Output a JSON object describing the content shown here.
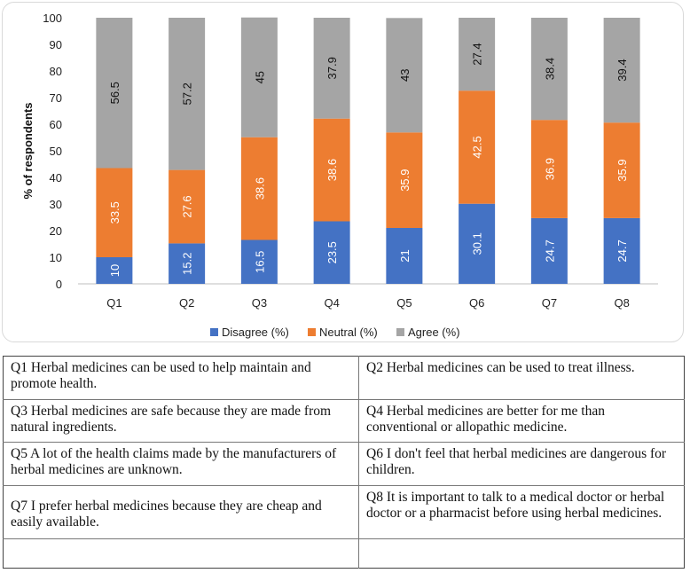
{
  "chart_data": {
    "type": "bar",
    "stacked": true,
    "categories": [
      "Q1",
      "Q2",
      "Q3",
      "Q4",
      "Q5",
      "Q6",
      "Q7",
      "Q8"
    ],
    "series": [
      {
        "name": "Disagree (%)",
        "color": "#4472c4",
        "values": [
          10,
          15.2,
          16.5,
          23.5,
          21,
          30.1,
          24.7,
          24.7
        ]
      },
      {
        "name": "Neutral (%)",
        "color": "#ed7d31",
        "values": [
          33.5,
          27.6,
          38.6,
          38.6,
          35.9,
          42.5,
          36.9,
          35.9
        ]
      },
      {
        "name": "Agree (%)",
        "color": "#a5a5a5",
        "values": [
          56.5,
          57.2,
          45,
          37.9,
          43,
          27.4,
          38.4,
          39.4
        ]
      }
    ],
    "value_labels": [
      [
        "10",
        "15.2",
        "16.5",
        "23.5",
        "21",
        "30.1",
        "24.7",
        "24.7"
      ],
      [
        "33.5",
        "27.6",
        "38.6",
        "38.6",
        "35.9",
        "42.5",
        "36.9",
        "35.9"
      ],
      [
        "56.5",
        "57.2",
        "45",
        "37.9",
        "43",
        "27.4",
        "38.4",
        "39.4"
      ]
    ],
    "title": "",
    "xlabel": "",
    "ylabel": "% of respondents",
    "ylim": [
      0,
      100
    ],
    "yticks": [
      "0",
      "10",
      "20",
      "30",
      "40",
      "50",
      "60",
      "70",
      "80",
      "90",
      "100"
    ],
    "grid": false,
    "legend": "bottom"
  },
  "statements": [
    {
      "left": "Q1 Herbal medicines can be used to help maintain and promote health.",
      "right": "Q2 Herbal medicines can be used to treat illness."
    },
    {
      "left": "Q3 Herbal medicines are safe because they are made from natural ingredients.",
      "right": "Q4 Herbal medicines are better for me than conventional or allopathic medicine."
    },
    {
      "left": "Q5 A lot of the health claims made by the manufacturers of herbal medicines are unknown.",
      "right": "Q6 I don't feel that herbal medicines are dangerous for children."
    },
    {
      "left": "Q7 I prefer herbal medicines because they are cheap and easily available.",
      "right": "Q8 It is important to talk to a medical doctor or herbal doctor or a pharmacist before using herbal medicines."
    }
  ]
}
